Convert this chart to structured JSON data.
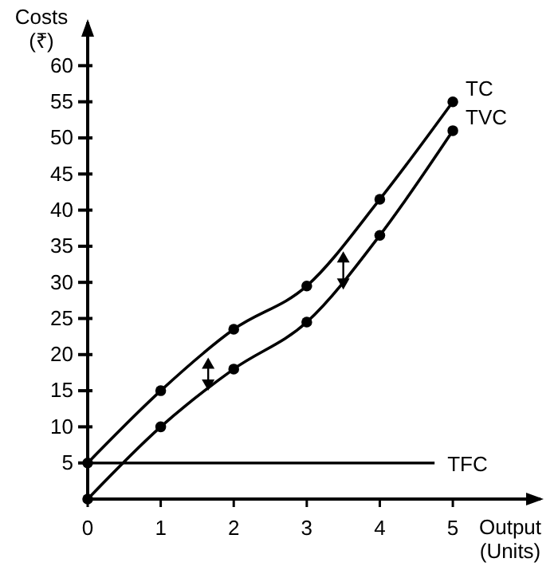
{
  "chart_data": {
    "type": "line",
    "xlabel": "Output (Units)",
    "ylabel": "Costs (₹)",
    "xlim": [
      0,
      6.2
    ],
    "ylim": [
      0,
      66
    ],
    "xticks": [
      0,
      1,
      2,
      3,
      4,
      5
    ],
    "yticks": [
      5,
      10,
      15,
      20,
      25,
      30,
      35,
      40,
      45,
      50,
      55,
      60
    ],
    "grid": false,
    "legend": false,
    "series": [
      {
        "name": "TC",
        "color": "#000000",
        "x": [
          0,
          1,
          2,
          3,
          4,
          5
        ],
        "values": [
          5,
          15,
          23.5,
          29.5,
          41.5,
          55
        ],
        "marker": "circle"
      },
      {
        "name": "TVC",
        "color": "#000000",
        "x": [
          0,
          1,
          2,
          3,
          4,
          5
        ],
        "values": [
          0,
          10,
          18,
          24.5,
          36.5,
          51
        ],
        "marker": "circle"
      },
      {
        "name": "TFC",
        "color": "#000000",
        "x": [
          0,
          4.75
        ],
        "values": [
          5,
          5
        ],
        "marker": "none"
      }
    ]
  }
}
